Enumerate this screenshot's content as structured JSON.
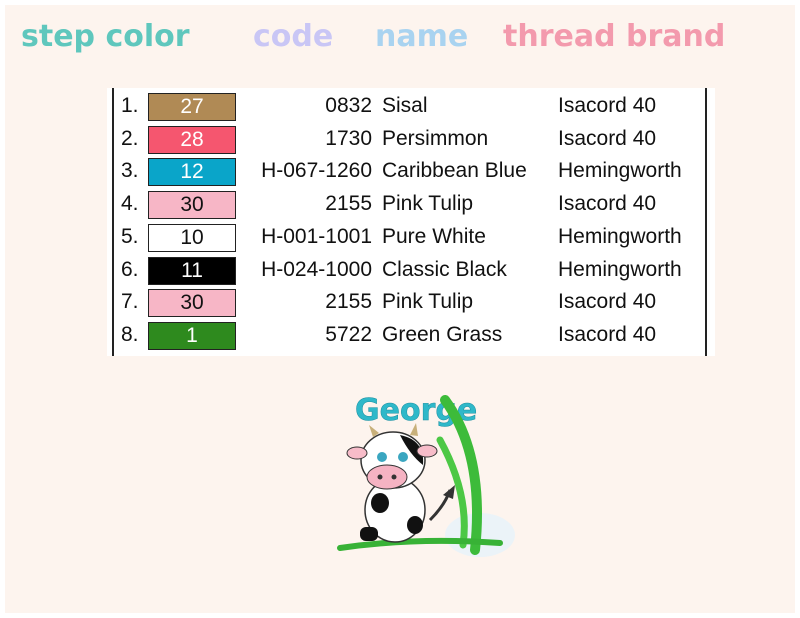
{
  "header": {
    "columns": [
      {
        "label": "step color",
        "color": "#5fc7bd"
      },
      {
        "label": "code",
        "color": "#c9c6f5"
      },
      {
        "label": "name",
        "color": "#a9d3f0"
      },
      {
        "label": "thread brand",
        "color": "#f39aad"
      }
    ]
  },
  "rows": [
    {
      "step": "1.",
      "color_num": "27",
      "swatch": "#b08a55",
      "text_color": "#ffffff",
      "code": "0832",
      "name": "Sisal",
      "brand": "Isacord 40"
    },
    {
      "step": "2.",
      "color_num": "28",
      "swatch": "#f5566f",
      "text_color": "#ffffff",
      "code": "1730",
      "name": "Persimmon",
      "brand": "Isacord 40"
    },
    {
      "step": "3.",
      "color_num": "12",
      "swatch": "#0aa5c9",
      "text_color": "#ffffff",
      "code": "H-067-1260",
      "name": "Caribbean Blue",
      "brand": "Hemingworth"
    },
    {
      "step": "4.",
      "color_num": "30",
      "swatch": "#f7b6c6",
      "text_color": "#111111",
      "code": "2155",
      "name": "Pink Tulip",
      "brand": "Isacord 40"
    },
    {
      "step": "5.",
      "color_num": "10",
      "swatch": "#ffffff",
      "text_color": "#111111",
      "code": "H-001-1001",
      "name": "Pure White",
      "brand": "Hemingworth"
    },
    {
      "step": "6.",
      "color_num": "11",
      "swatch": "#000000",
      "text_color": "#ffffff",
      "code": "H-024-1000",
      "name": "Classic Black",
      "brand": "Hemingworth"
    },
    {
      "step": "7.",
      "color_num": "30",
      "swatch": "#f7b6c6",
      "text_color": "#111111",
      "code": "2155",
      "name": "Pink Tulip",
      "brand": "Isacord 40"
    },
    {
      "step": "8.",
      "color_num": "1",
      "swatch": "#2e8a1e",
      "text_color": "#ffffff",
      "code": "5722",
      "name": "Green Grass",
      "brand": "Isacord 40"
    }
  ],
  "design": {
    "name_text": "George",
    "icon": "cow-embroidery-design"
  }
}
